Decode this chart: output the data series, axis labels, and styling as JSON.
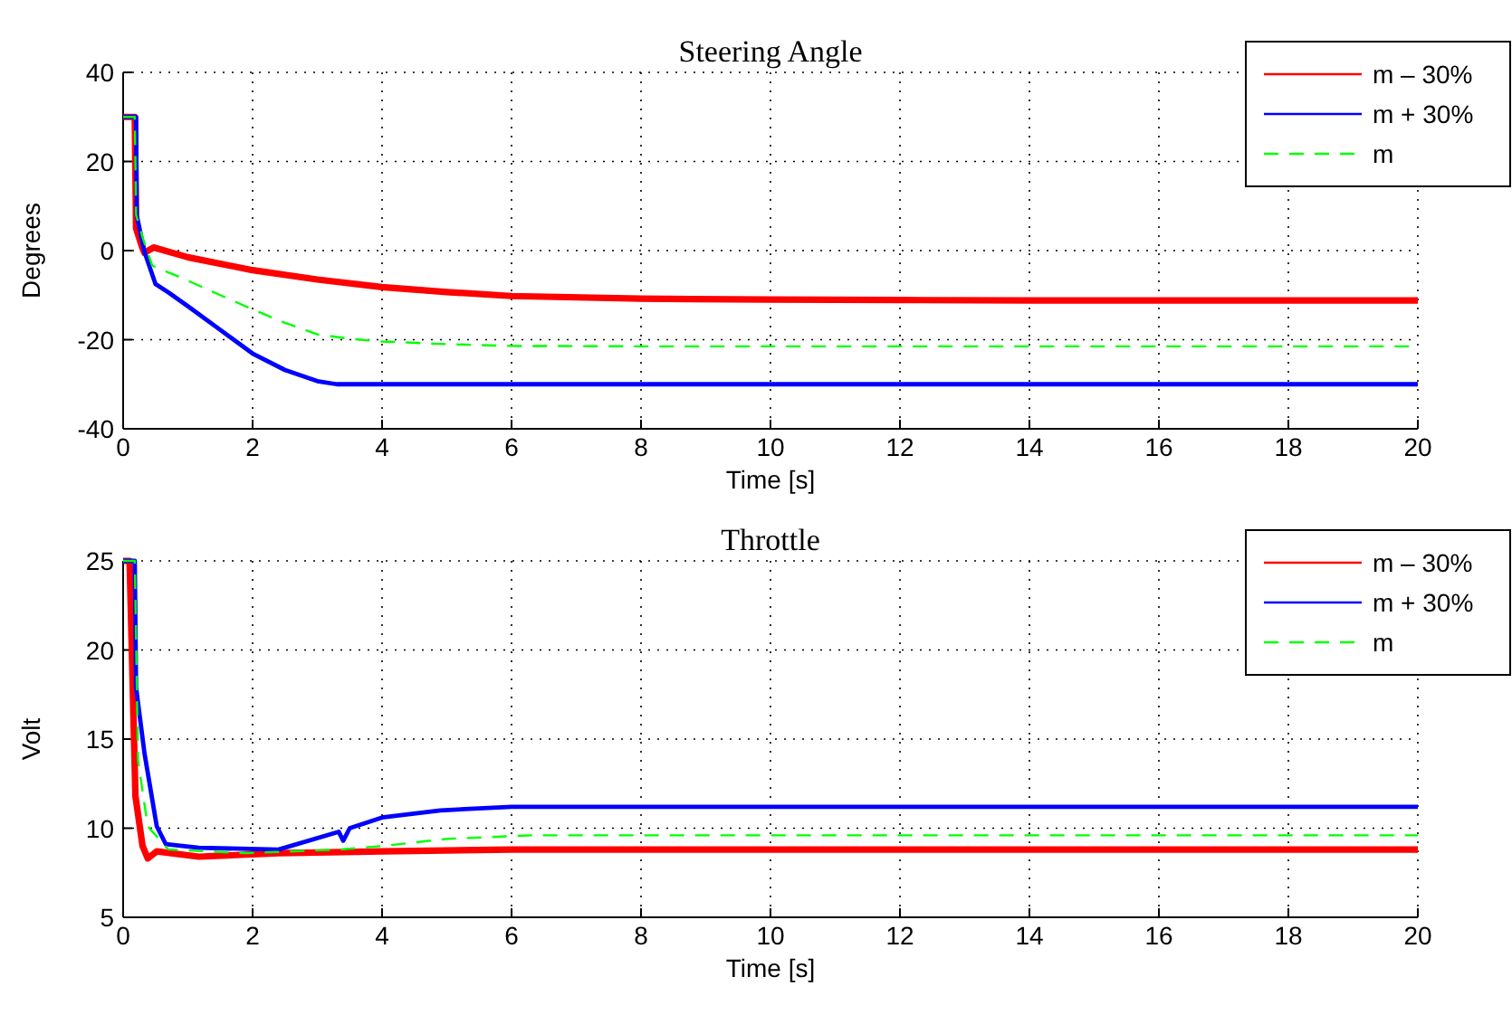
{
  "chart_data": [
    {
      "type": "line",
      "title": "Steering Angle",
      "xlabel": "Time [s]",
      "ylabel": "Degrees",
      "xlim": [
        0,
        20
      ],
      "ylim": [
        -40,
        40
      ],
      "xticks": [
        0,
        2,
        4,
        6,
        8,
        10,
        12,
        14,
        16,
        18,
        20
      ],
      "yticks": [
        -40,
        -20,
        0,
        20,
        40
      ],
      "grid": true,
      "legend": "top right",
      "series": [
        {
          "name": "m – 30%",
          "color": "#ff0000",
          "line_style": "solid",
          "x": [
            0,
            0.18,
            0.2,
            0.3,
            0.33,
            0.47,
            1,
            2,
            3,
            4,
            5,
            6,
            8,
            10,
            12,
            14,
            16,
            18,
            20
          ],
          "values": [
            30,
            30,
            5,
            0.5,
            -0.5,
            0.7,
            -1.5,
            -4.4,
            -6.5,
            -8.2,
            -9.3,
            -10.2,
            -10.8,
            -11,
            -11.1,
            -11.2,
            -11.2,
            -11.2,
            -11.2
          ]
        },
        {
          "name": "m + 30%",
          "color": "#0000ff",
          "line_style": "solid",
          "x": [
            0,
            0.2,
            0.21,
            0.33,
            0.5,
            0.7,
            1,
            1.5,
            2,
            2.5,
            3,
            3.3,
            4,
            6,
            8,
            10,
            12,
            14,
            16,
            18,
            20
          ],
          "values": [
            30,
            30,
            7.9,
            -0.3,
            -7.5,
            -9.4,
            -12.5,
            -17.8,
            -23.1,
            -26.8,
            -29.3,
            -30,
            -30,
            -30,
            -30,
            -30,
            -30,
            -30,
            -30,
            -30,
            -30
          ]
        },
        {
          "name": "m",
          "color": "#00ff00",
          "line_style": "dashed",
          "x": [
            0,
            0.18,
            0.2,
            0.3,
            0.45,
            0.9,
            1.5,
            2,
            2.5,
            3,
            3.5,
            4,
            5,
            6,
            8,
            10,
            12,
            14,
            16,
            18,
            20
          ],
          "values": [
            30,
            30,
            8,
            3,
            -3.4,
            -6.1,
            -10,
            -13.2,
            -16.2,
            -18.8,
            -19.8,
            -20.4,
            -21,
            -21.4,
            -21.5,
            -21.5,
            -21.5,
            -21.5,
            -21.5,
            -21.5,
            -21.5
          ]
        }
      ]
    },
    {
      "type": "line",
      "title": "Throttle",
      "xlabel": "Time [s]",
      "ylabel": "Volt",
      "xlim": [
        0,
        20
      ],
      "ylim": [
        5,
        25
      ],
      "xticks": [
        0,
        2,
        4,
        6,
        8,
        10,
        12,
        14,
        16,
        18,
        20
      ],
      "yticks": [
        5,
        10,
        15,
        20,
        25
      ],
      "grid": true,
      "legend": "top right",
      "series": [
        {
          "name": "m – 30%",
          "color": "#ff0000",
          "line_style": "solid",
          "x": [
            0,
            0.1,
            0.19,
            0.3,
            0.38,
            0.52,
            1.17,
            2.4,
            4,
            6,
            8,
            10,
            15,
            20
          ],
          "values": [
            25,
            25,
            11.8,
            9,
            8.3,
            8.7,
            8.4,
            8.6,
            8.7,
            8.8,
            8.8,
            8.8,
            8.8,
            8.8
          ]
        },
        {
          "name": "m + 30%",
          "color": "#0000ff",
          "line_style": "solid",
          "x": [
            0,
            0.18,
            0.2,
            0.33,
            0.52,
            0.66,
            1.17,
            2.4,
            3.33,
            3.4,
            3.5,
            4,
            4.9,
            6,
            8,
            10,
            15,
            20
          ],
          "values": [
            25,
            25,
            17.9,
            14.2,
            10.1,
            9.1,
            8.9,
            8.8,
            9.8,
            9.3,
            10,
            10.6,
            11,
            11.2,
            11.2,
            11.2,
            11.2,
            11.2
          ]
        },
        {
          "name": "m",
          "color": "#00ff00",
          "line_style": "dashed",
          "x": [
            0,
            0.18,
            0.23,
            0.38,
            0.7,
            1.9,
            3.33,
            4,
            5,
            6.3,
            8,
            10,
            15,
            20
          ],
          "values": [
            25,
            25,
            13.8,
            10.1,
            8.8,
            8.6,
            8.8,
            9,
            9.4,
            9.6,
            9.6,
            9.6,
            9.6,
            9.6
          ]
        }
      ]
    }
  ]
}
